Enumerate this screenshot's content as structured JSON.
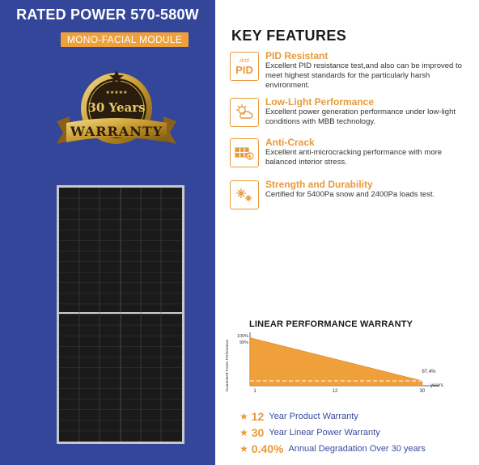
{
  "left": {
    "title": "RATED POWER 570-580W",
    "badge": "MONO-FACIAL MODULE",
    "seal": {
      "years": "30 Years",
      "text": "WARRANTY"
    }
  },
  "right": {
    "title": "KEY FEATURES",
    "features": [
      {
        "icon": "pid-icon",
        "icon_text_top": "Anti",
        "icon_text_main": "PID",
        "title": "PID Resistant",
        "desc": "Excellent PID resistance test,and also can be improved to meet highest standards for the particularly harsh environment."
      },
      {
        "icon": "sun-cloud-icon",
        "title": "Low-Light Performance",
        "desc": "Excellent power generation performance under low-light conditions with MBB technology."
      },
      {
        "icon": "solar-panel-icon",
        "title": "Anti-Crack",
        "desc": "Excellent anti-microcracking performance with more balanced interior stress."
      },
      {
        "icon": "snowflake-icon",
        "title": "Strength and Durability",
        "desc": "Certified for 5400Pa snow and 2400Pa loads test."
      }
    ],
    "chart_title": "LINEAR PERFORMANCE WARRANTY",
    "chart_data": {
      "type": "area",
      "title": "LINEAR PERFORMANCE WARRANTY",
      "ylabel": "Guaranteed Power Performance",
      "xlabel": "years",
      "x": [
        1,
        30
      ],
      "y": [
        99,
        87.4
      ],
      "y_ticks": [
        "100%",
        "99%"
      ],
      "x_ticks": [
        "1",
        "12",
        "30"
      ],
      "end_label": "87.4%",
      "color": "#f0a03a"
    },
    "bullets": [
      {
        "value": "12",
        "text": "Year Product Warranty"
      },
      {
        "value": "30",
        "text": "Year Linear Power Warranty"
      },
      {
        "value": "0.40%",
        "text": "Annual Degradation Over 30 years"
      }
    ]
  },
  "colors": {
    "blue": "#33469a",
    "orange": "#e9993a",
    "gold": "#c99a2e"
  }
}
